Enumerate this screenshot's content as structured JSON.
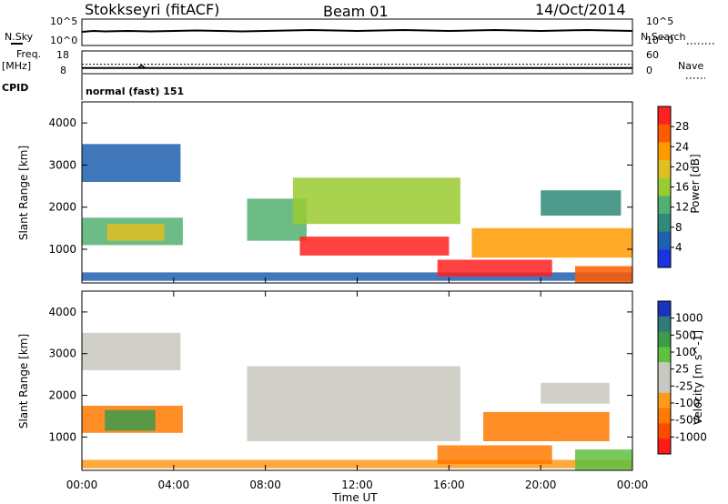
{
  "header": {
    "station": "Stokkseyri (fitACF)",
    "beam": "Beam 01",
    "date": "14/Oct/2014"
  },
  "labels": {
    "nsky": "N.Sky",
    "nsearch": "N.Search",
    "freq": "Freq.",
    "mhz": "[MHz]",
    "nave": "Nave",
    "cpid": "CPID",
    "cpid_value": "normal (fast) 151"
  },
  "chart_data": [
    {
      "type": "line",
      "panel": "noise",
      "yscale": "log",
      "left_tick_labels": [
        "10^5",
        "10^0"
      ],
      "right_tick_labels": [
        "10^5",
        "10^0"
      ],
      "series": [
        {
          "name": "N.Sky",
          "x_hours": [
            0,
            0.5,
            1,
            2,
            3,
            4,
            5,
            6,
            7,
            8,
            9,
            10,
            11,
            12,
            13,
            14,
            15,
            16,
            17,
            18,
            19,
            20,
            21,
            22,
            23,
            24
          ],
          "log_values": [
            2.6,
            2.8,
            2.7,
            2.8,
            2.7,
            2.8,
            2.9,
            2.8,
            2.7,
            2.8,
            2.9,
            3.0,
            2.9,
            2.8,
            2.9,
            3.0,
            2.9,
            2.8,
            2.9,
            3.0,
            2.9,
            2.8,
            2.9,
            3.0,
            2.9,
            2.8
          ]
        }
      ]
    },
    {
      "type": "line",
      "panel": "frequency",
      "left_tick_labels": [
        "18",
        "8"
      ],
      "right_tick_labels": [
        "60",
        "0"
      ],
      "freq_mhz": 10.5,
      "nave": 25,
      "notch_hour": 2.6
    },
    {
      "type": "heatmap",
      "panel": "power",
      "title": "",
      "xlabel": "",
      "ylabel": "Slant Range [km]",
      "xlim_hours": [
        0,
        24
      ],
      "ylim_km": [
        200,
        4500
      ],
      "y_ticks": [
        "1000",
        "2000",
        "3000",
        "4000"
      ],
      "colorbar_label": "Power [dB]",
      "colorbar_ticks": [
        "28",
        "24",
        "20",
        "16",
        "12",
        "8",
        "4"
      ],
      "colorbar_colors": [
        "#ff2020",
        "#ff5a00",
        "#ff9a00",
        "#e0c020",
        "#9acb30",
        "#52b070",
        "#2f8a7a",
        "#2060b0",
        "#1a34e0"
      ],
      "regions": [
        {
          "t0": 0.0,
          "t1": 4.3,
          "r0": 2600,
          "r1": 3500,
          "level": 7
        },
        {
          "t0": 0.0,
          "t1": 4.4,
          "r0": 1100,
          "r1": 1750,
          "level": 5
        },
        {
          "t0": 1.1,
          "t1": 3.6,
          "r0": 1200,
          "r1": 1600,
          "level": 3
        },
        {
          "t0": 0.0,
          "t1": 24.0,
          "r0": 250,
          "r1": 450,
          "level": 7
        },
        {
          "t0": 7.2,
          "t1": 9.8,
          "r0": 1200,
          "r1": 2200,
          "level": 5
        },
        {
          "t0": 9.2,
          "t1": 16.5,
          "r0": 1600,
          "r1": 2700,
          "level": 4
        },
        {
          "t0": 9.5,
          "t1": 16.0,
          "r0": 850,
          "r1": 1300,
          "level": 0
        },
        {
          "t0": 15.5,
          "t1": 20.5,
          "r0": 350,
          "r1": 750,
          "level": 0
        },
        {
          "t0": 17.0,
          "t1": 24.0,
          "r0": 800,
          "r1": 1500,
          "level": 2
        },
        {
          "t0": 20.0,
          "t1": 23.5,
          "r0": 1800,
          "r1": 2400,
          "level": 6
        },
        {
          "t0": 21.5,
          "t1": 24.0,
          "r0": 200,
          "r1": 600,
          "level": 1
        }
      ]
    },
    {
      "type": "heatmap",
      "panel": "velocity",
      "title": "",
      "xlabel": "Time UT",
      "ylabel": "Slant Range [km]",
      "xlim_hours": [
        0,
        24
      ],
      "ylim_km": [
        200,
        4500
      ],
      "y_ticks": [
        "1000",
        "2000",
        "3000",
        "4000"
      ],
      "x_ticks": [
        "00:00",
        "04:00",
        "08:00",
        "12:00",
        "16:00",
        "20:00",
        "00:00"
      ],
      "colorbar_label": "Velocity [m s^-1]",
      "colorbar_ticks": [
        "1000",
        "500",
        "100",
        "25",
        "-25",
        "-100",
        "-500",
        "-1000"
      ],
      "colorbar_colors": [
        "#1a34c0",
        "#2f7a7a",
        "#3c9a4a",
        "#60c040",
        "#c8c8c0",
        "#c8c8c0",
        "#ff9a1a",
        "#ff7a00",
        "#ff4a00",
        "#ff1a1a"
      ],
      "regions": [
        {
          "t0": 0.0,
          "t1": 4.3,
          "r0": 2600,
          "r1": 3500,
          "level": 4
        },
        {
          "t0": 0.0,
          "t1": 4.4,
          "r0": 1100,
          "r1": 1750,
          "level": 7
        },
        {
          "t0": 1.0,
          "t1": 3.2,
          "r0": 1150,
          "r1": 1650,
          "level": 2
        },
        {
          "t0": 0.0,
          "t1": 24.0,
          "r0": 250,
          "r1": 450,
          "level": 6
        },
        {
          "t0": 7.2,
          "t1": 16.5,
          "r0": 900,
          "r1": 2700,
          "level": 4
        },
        {
          "t0": 15.5,
          "t1": 20.5,
          "r0": 350,
          "r1": 800,
          "level": 7
        },
        {
          "t0": 17.5,
          "t1": 23.0,
          "r0": 900,
          "r1": 1600,
          "level": 7
        },
        {
          "t0": 20.0,
          "t1": 23.0,
          "r0": 1800,
          "r1": 2300,
          "level": 4
        },
        {
          "t0": 21.5,
          "t1": 24.0,
          "r0": 200,
          "r1": 700,
          "level": 3
        }
      ]
    }
  ]
}
